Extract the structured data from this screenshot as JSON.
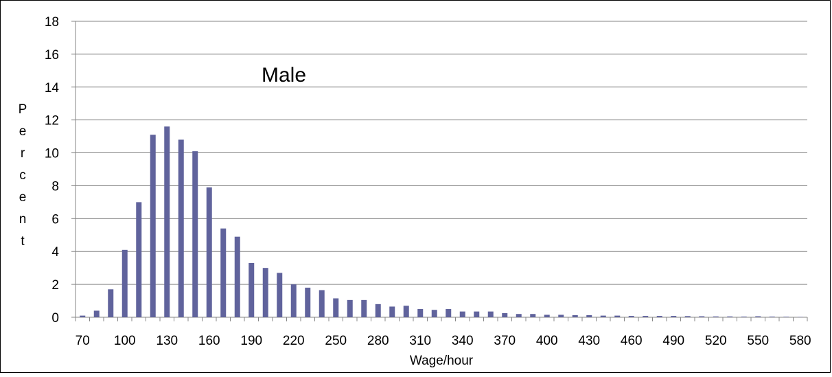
{
  "chart_data": {
    "type": "bar",
    "title": "Male",
    "xlabel": "Wage/hour",
    "ylabel": "Percent",
    "ylim": [
      0,
      18
    ],
    "yticks": [
      "0",
      "2",
      "4",
      "6",
      "8",
      "10",
      "12",
      "14",
      "16",
      "18"
    ],
    "x": [
      70,
      80,
      90,
      100,
      110,
      120,
      130,
      140,
      150,
      160,
      170,
      180,
      190,
      200,
      210,
      220,
      230,
      240,
      250,
      260,
      270,
      280,
      290,
      300,
      310,
      320,
      330,
      340,
      350,
      360,
      370,
      380,
      390,
      400,
      410,
      420,
      430,
      440,
      450,
      460,
      470,
      480,
      490,
      500,
      510,
      520,
      530,
      540,
      550,
      560,
      570,
      580
    ],
    "xticks": [
      "70",
      "100",
      "130",
      "160",
      "190",
      "220",
      "250",
      "280",
      "310",
      "340",
      "370",
      "400",
      "430",
      "460",
      "490",
      "520",
      "550",
      "580"
    ],
    "values": [
      0.1,
      0.4,
      1.7,
      4.1,
      7.0,
      11.1,
      11.6,
      10.8,
      10.1,
      7.9,
      5.4,
      4.9,
      3.3,
      3.0,
      2.7,
      2.0,
      1.8,
      1.65,
      1.15,
      1.05,
      1.05,
      0.8,
      0.65,
      0.7,
      0.5,
      0.45,
      0.5,
      0.35,
      0.35,
      0.35,
      0.25,
      0.2,
      0.2,
      0.15,
      0.15,
      0.13,
      0.13,
      0.1,
      0.1,
      0.08,
      0.08,
      0.08,
      0.08,
      0.07,
      0.06,
      0.05,
      0.05,
      0.04,
      0.06,
      0.04,
      0.03,
      0.02
    ],
    "bar_color": "#60639c",
    "grid": true,
    "gridline_color": "#868686"
  }
}
